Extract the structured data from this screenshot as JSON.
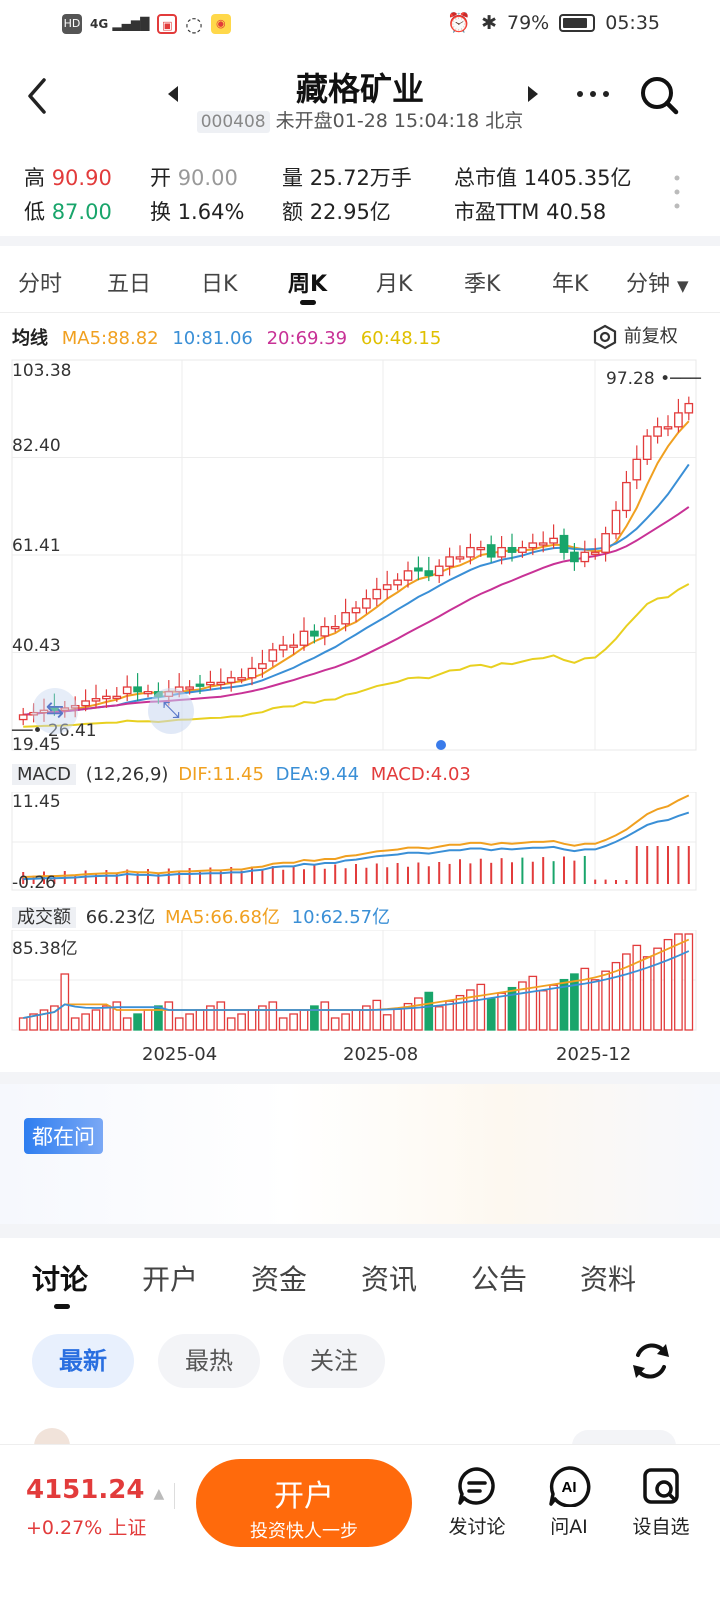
{
  "status_bar": {
    "network": "HD",
    "signal": "4G",
    "battery_percent": "79%",
    "time": "05:35"
  },
  "header": {
    "title": "藏格矿业",
    "code": "000408",
    "status": "未开盘01-28 15:04:18 北京"
  },
  "stats": {
    "high_label": "高",
    "high_value": "90.90",
    "low_label": "低",
    "low_value": "87.00",
    "open_label": "开",
    "open_value": "90.00",
    "turnover_label": "换",
    "turnover_value": "1.64%",
    "volume_label": "量",
    "volume_value": "25.72万手",
    "amount_label": "额",
    "amount_value": "22.95亿",
    "mcap_label": "总市值",
    "mcap_value": "1405.35亿",
    "pe_label": "市盈TTM",
    "pe_value": "40.58"
  },
  "ktabs": [
    "分时",
    "五日",
    "日K",
    "周K",
    "月K",
    "季K",
    "年K",
    "分钟"
  ],
  "active_ktab": "周K",
  "ma_legend": {
    "label": "均线",
    "ma5": "MA5:88.82",
    "ma10": "10:81.06",
    "ma20": "20:69.39",
    "ma60": "60:48.15",
    "adjust": "前复权"
  },
  "price_axis": [
    "103.38",
    "82.40",
    "61.41",
    "40.43",
    "19.45"
  ],
  "price_max_marker": "97.28",
  "price_min_marker": "26.41",
  "macd_legend": {
    "label": "MACD",
    "params": "(12,26,9)",
    "dif": "DIF:11.45",
    "dea": "DEA:9.44",
    "macd": "MACD:4.03"
  },
  "macd_axis": [
    "11.45",
    "-0.26"
  ],
  "volume_legend": {
    "label": "成交额",
    "value": "66.23亿",
    "ma5": "MA5:66.68亿",
    "ma10": "10:62.57亿"
  },
  "volume_axis": [
    "85.38亿"
  ],
  "date_axis": [
    "2025-04",
    "2025-08",
    "2025-12"
  ],
  "ask_badge": "都在问",
  "news_tabs": [
    "讨论",
    "开户",
    "资金",
    "资讯",
    "公告",
    "资料"
  ],
  "filter_pills": [
    "最新",
    "最热",
    "关注"
  ],
  "bottom": {
    "index_value": "4151.24",
    "index_change": "+0.27% 上证",
    "open_account": "开户",
    "open_account_sub": "投资快人一步",
    "post": "发讨论",
    "ask_ai": "问AI",
    "add_watch": "设自选"
  },
  "colors": {
    "up": "#e23b3b",
    "down": "#19a56b",
    "ma5": "#f0a020",
    "ma10": "#3a8fd6",
    "ma20": "#c83296",
    "ma60": "#e8d020",
    "orange": "#ff6a0c"
  },
  "chart_data": {
    "type": "candlestick",
    "period": "weekly",
    "x_ticks": [
      "2025-04",
      "2025-08",
      "2025-12"
    ],
    "ylim": [
      19.45,
      103.38
    ],
    "closes": [
      27,
      27.5,
      28,
      28,
      28.5,
      29,
      30,
      30.5,
      31,
      31,
      33,
      32,
      32,
      31,
      32,
      33,
      33,
      33.5,
      34,
      34,
      35,
      35,
      37,
      38,
      41,
      42,
      42,
      45,
      44,
      46,
      46,
      49,
      50,
      52,
      54,
      55,
      56,
      58,
      58,
      57,
      59,
      61,
      61,
      63,
      63,
      61,
      63,
      62,
      63,
      64,
      64,
      65,
      62,
      60,
      62,
      62,
      66,
      71,
      77,
      82,
      87,
      89,
      89,
      92,
      94
    ]
  }
}
